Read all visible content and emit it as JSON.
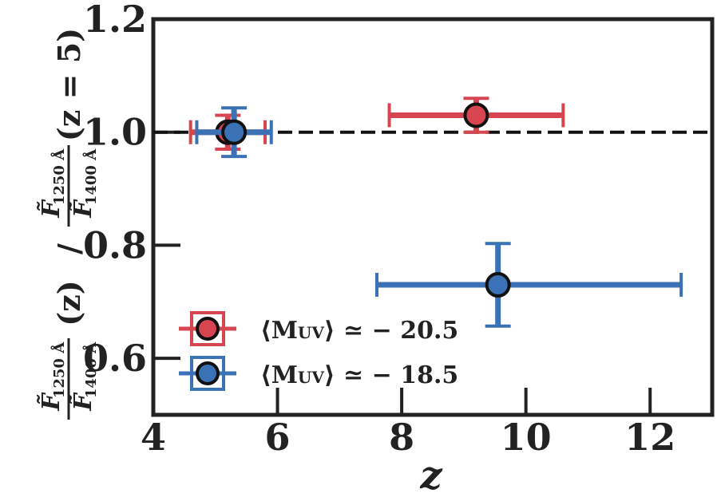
{
  "chart_data": {
    "type": "scatter",
    "xlabel": "z",
    "ylabel": "F̃1250 Å/F̃1400 Å (z) / F̃1250 Å/F̃1400 Å (z = 5)",
    "ylabel_parts": {
      "num": "F̃",
      "sub_num": "1250 Å",
      "den": "F̃",
      "sub_den": "1400 Å",
      "arg_z": "(z)",
      "slash": "/",
      "arg_z5": "(z = 5)"
    },
    "xlim": [
      4,
      13
    ],
    "ylim": [
      0.5,
      1.2
    ],
    "xticks": [
      4,
      6,
      8,
      10,
      12
    ],
    "xtick_labels": [
      "4",
      "6",
      "8",
      "10",
      "12"
    ],
    "yticks": [
      0.6,
      0.8,
      1.0,
      1.2
    ],
    "ytick_labels": [
      "0.6",
      "0.8",
      "1.0",
      "1.2"
    ],
    "reference_line": {
      "y": 1.0,
      "style": "dashed",
      "color": "#111111"
    },
    "legend_position": "lower-left",
    "series": [
      {
        "name": "⟨MUV⟩ ≃ −20.5",
        "legend_main": "⟨M",
        "legend_sub": "UV",
        "legend_rest": "⟩ ≃ − 20.5",
        "color": "#d64550",
        "points": [
          {
            "x": 5.2,
            "y": 1.0,
            "xerr": [
              0.6,
              0.6
            ],
            "yerr": [
              0.03,
              0.03
            ]
          },
          {
            "x": 9.2,
            "y": 1.03,
            "xerr": [
              1.4,
              1.4
            ],
            "yerr": [
              0.03,
              0.03
            ]
          }
        ]
      },
      {
        "name": "⟨MUV⟩ ≃ −18.5",
        "legend_main": "⟨M",
        "legend_sub": "UV",
        "legend_rest": "⟩ ≃ − 18.5",
        "color": "#3b72b6",
        "points": [
          {
            "x": 5.3,
            "y": 1.0,
            "xerr": [
              0.6,
              0.6
            ],
            "yerr": [
              0.043,
              0.043
            ]
          },
          {
            "x": 9.55,
            "y": 0.73,
            "xerr": [
              1.95,
              2.95
            ],
            "yerr": [
              0.073,
              0.073
            ]
          }
        ]
      }
    ]
  }
}
